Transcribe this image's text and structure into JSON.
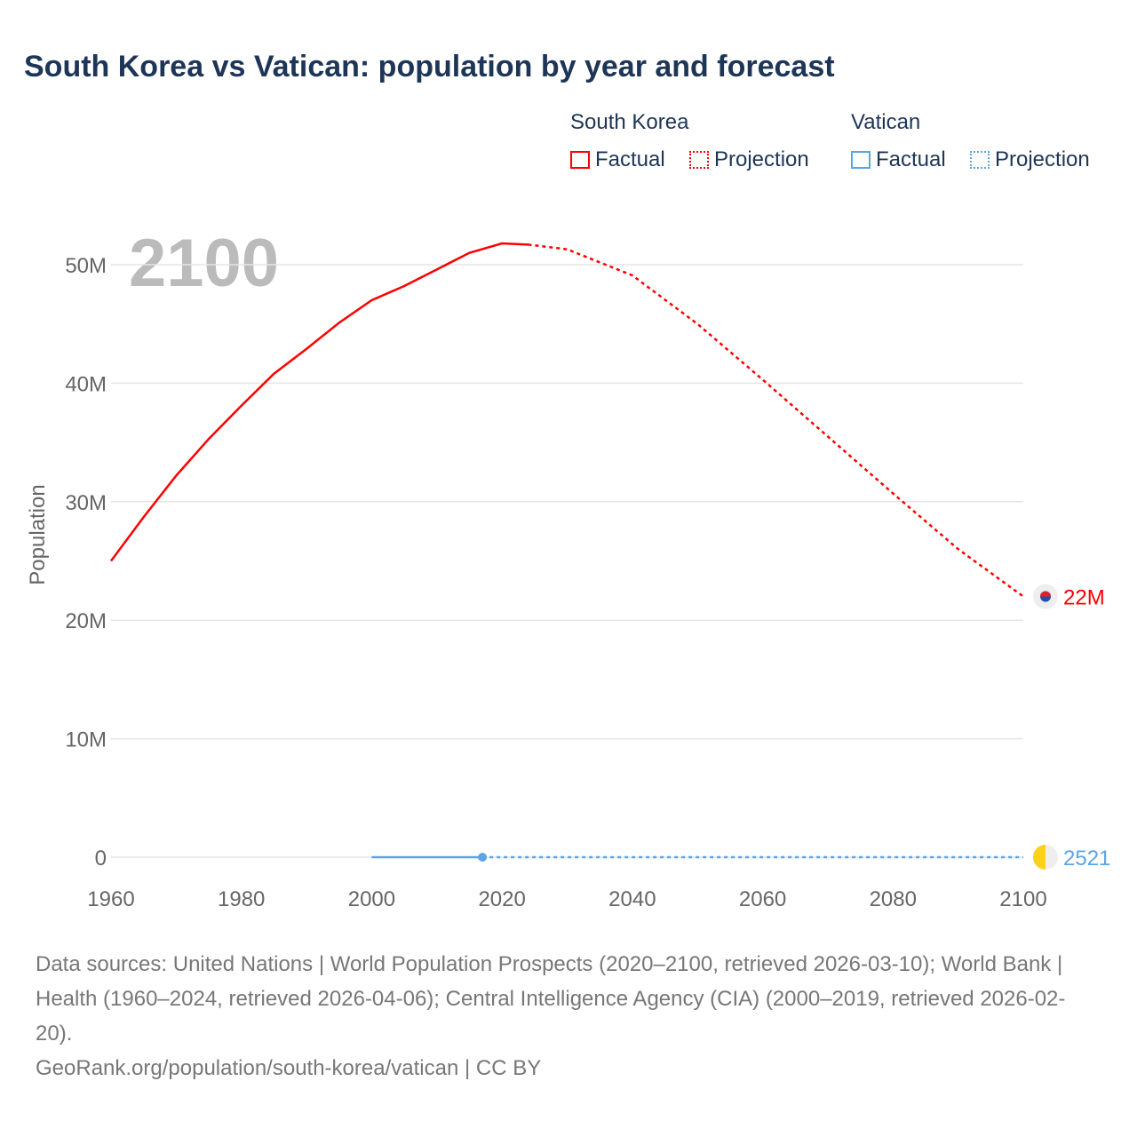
{
  "title": "South Korea vs Vatican: population by year and forecast",
  "legend": {
    "groups": [
      {
        "name": "South Korea",
        "color": "#ff0000",
        "factual": "Factual",
        "projection": "Projection"
      },
      {
        "name": "Vatican",
        "color": "#5ba4e6",
        "factual": "Factual",
        "projection": "Projection"
      }
    ]
  },
  "year_watermark": "2100",
  "chart_data": {
    "type": "line",
    "ylabel": "Population",
    "xlabel": "",
    "xlim": [
      1960,
      2100
    ],
    "ylim": [
      0,
      50000000
    ],
    "xticks": [
      "1960",
      "1980",
      "2000",
      "2020",
      "2040",
      "2060",
      "2080",
      "2100"
    ],
    "yticks": [
      "0",
      "10M",
      "20M",
      "30M",
      "40M",
      "50M"
    ],
    "grid": true,
    "series": [
      {
        "name": "South Korea",
        "color": "#ff0000",
        "end_label": "22M",
        "factual": {
          "x": [
            1960,
            1965,
            1970,
            1975,
            1980,
            1985,
            1990,
            1995,
            2000,
            2005,
            2010,
            2015,
            2020,
            2024
          ],
          "y": [
            25.0,
            28.7,
            32.2,
            35.3,
            38.1,
            40.8,
            42.9,
            45.1,
            47.0,
            48.2,
            49.6,
            51.0,
            51.8,
            51.7
          ]
        },
        "projection": {
          "x": [
            2024,
            2030,
            2040,
            2050,
            2060,
            2070,
            2080,
            2090,
            2100
          ],
          "y": [
            51.7,
            51.3,
            49.1,
            45.0,
            40.3,
            35.5,
            30.7,
            26.0,
            22.0
          ]
        }
      },
      {
        "name": "Vatican",
        "color": "#5ba4e6",
        "end_label": "2521",
        "factual": {
          "x": [
            2000,
            2017
          ],
          "y": [
            0.0008,
            0.0008
          ]
        },
        "projection": {
          "x": [
            2017,
            2100
          ],
          "y": [
            0.0008,
            0.0025
          ]
        }
      }
    ],
    "units_note": "y values in millions"
  },
  "footer": {
    "sources": "Data sources: United Nations | World Population Prospects (2020–2100, retrieved 2026-03-10); World Bank | Health (1960–2024, retrieved 2026-04-06); Central Intelligence Agency (CIA) (2000–2019, retrieved 2026-02-20).",
    "credit": "GeoRank.org/population/south-korea/vatican | CC BY"
  }
}
